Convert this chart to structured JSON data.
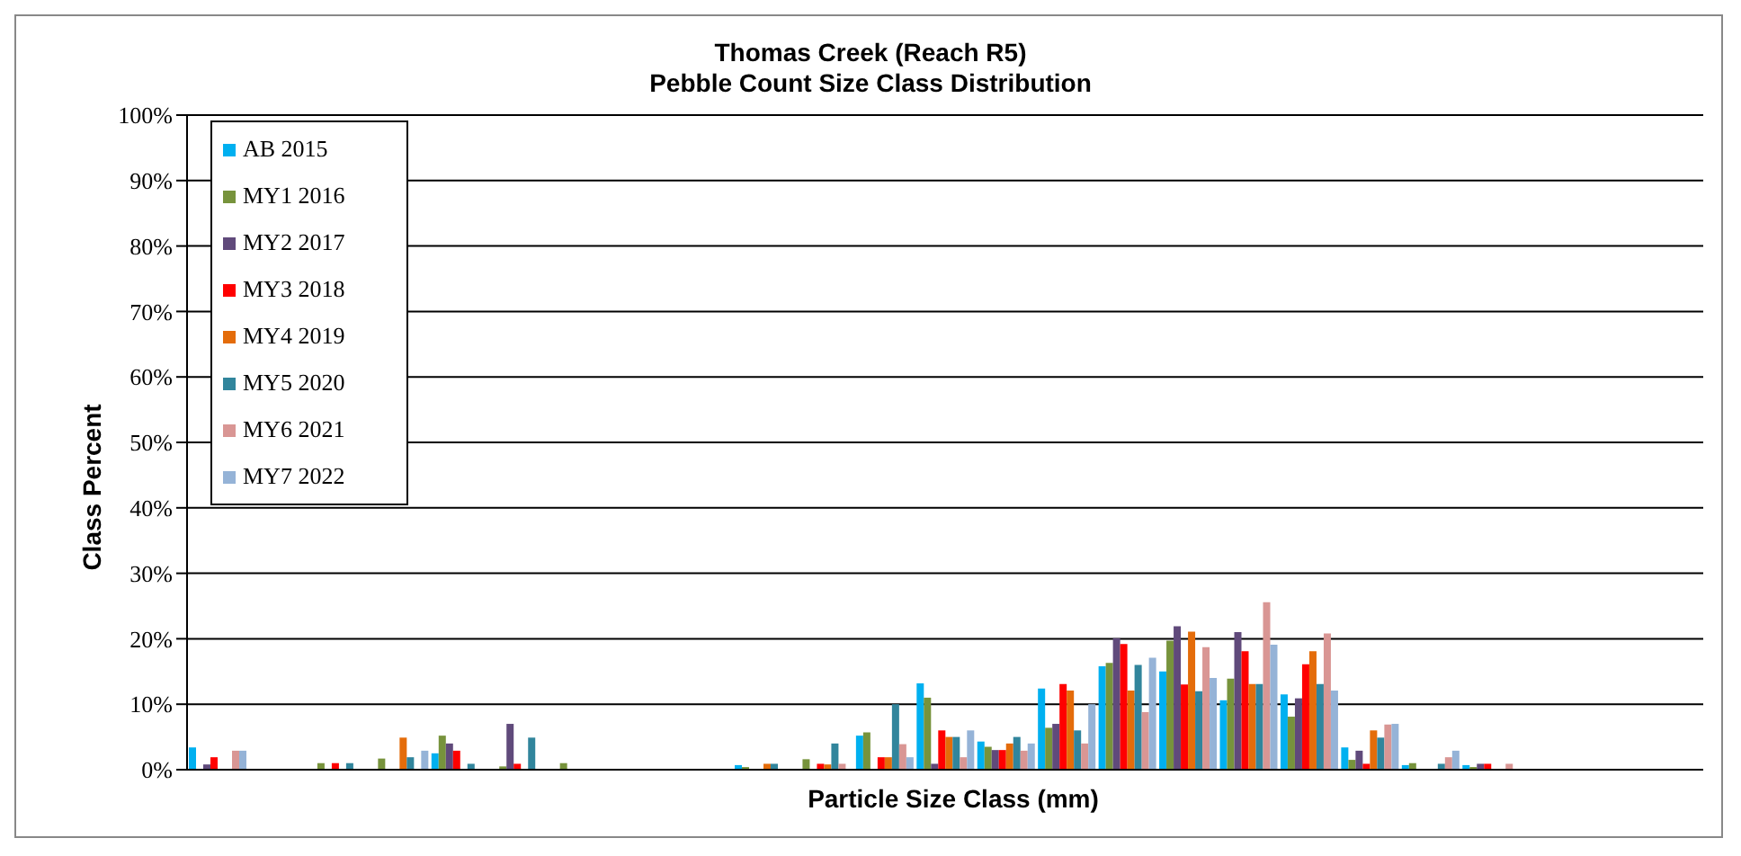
{
  "chart_data": {
    "type": "bar",
    "title": "Thomas Creek (Reach R5)",
    "subtitle": "Pebble Count Size Class Distribution",
    "xlabel": "Particle Size Class (mm)",
    "ylabel": "Class Percent",
    "categories": [
      null,
      null,
      null,
      null,
      null,
      null,
      null,
      null,
      null,
      null,
      null,
      null,
      null,
      null,
      null,
      null,
      null,
      null,
      null,
      null,
      null,
      null,
      null,
      null,
      null
    ],
    "series": [
      {
        "name": "AB 2015",
        "color": "#00b0f0",
        "values": [
          3.4,
          0,
          0,
          0,
          2.5,
          0,
          0,
          0,
          0,
          0.7,
          0,
          5.2,
          13.2,
          4.3,
          12.4,
          15.8,
          15,
          10.6,
          11.5,
          3.4,
          0.7,
          0.7,
          0,
          0,
          0
        ]
      },
      {
        "name": "MY1 2016",
        "color": "#77933c",
        "values": [
          0,
          0,
          1,
          1.7,
          5.2,
          0.5,
          1,
          0,
          0,
          0.4,
          1.6,
          5.7,
          11,
          3.5,
          6.4,
          16.3,
          19.7,
          13.9,
          8.1,
          1.5,
          1,
          0.4,
          0,
          0,
          0
        ]
      },
      {
        "name": "MY2 2017",
        "color": "#604a7b",
        "values": [
          0.8,
          0,
          0,
          0,
          4,
          7,
          0,
          0,
          0,
          0,
          0,
          0,
          0.9,
          3,
          7,
          20.1,
          21.9,
          21,
          10.9,
          2.9,
          0,
          0.9,
          0,
          0,
          0
        ]
      },
      {
        "name": "MY3 2018",
        "color": "#ff0000",
        "values": [
          1.9,
          0,
          1,
          0,
          2.9,
          0.9,
          0,
          0,
          0,
          0,
          0.9,
          1.9,
          6,
          3,
          13.1,
          19.2,
          13,
          18.1,
          16.1,
          0.9,
          0,
          0.9,
          0,
          0,
          0
        ]
      },
      {
        "name": "MY4 2019",
        "color": "#e46c0a",
        "values": [
          0,
          0,
          0,
          4.9,
          0,
          0,
          0,
          0,
          0,
          0.9,
          0.8,
          1.9,
          5,
          4,
          12.1,
          12.1,
          21.1,
          13.1,
          18.1,
          6,
          0,
          0,
          0,
          0,
          0
        ]
      },
      {
        "name": "MY5 2020",
        "color": "#31859c",
        "values": [
          0,
          0,
          1,
          1.9,
          0.9,
          4.9,
          0,
          0,
          0,
          0.9,
          4,
          10,
          5,
          5,
          6,
          16,
          12,
          13.1,
          13.1,
          4.9,
          0.9,
          0,
          0,
          0,
          0
        ]
      },
      {
        "name": "MY6 2021",
        "color": "#d99694",
        "values": [
          2.9,
          0,
          0,
          0,
          0,
          0,
          0,
          0,
          0,
          0,
          0.9,
          3.9,
          1.9,
          2.9,
          4,
          8.8,
          18.7,
          25.6,
          20.8,
          6.9,
          1.9,
          0.9,
          0,
          0,
          0
        ]
      },
      {
        "name": "MY7 2022",
        "color": "#95b3d7",
        "values": [
          2.9,
          0,
          0,
          2.9,
          0,
          0,
          0,
          0,
          0,
          0,
          0,
          1.9,
          6,
          4,
          10,
          17.1,
          14,
          19.1,
          12.1,
          7,
          2.9,
          0,
          0,
          0,
          0
        ]
      }
    ],
    "ylim": [
      0,
      100
    ],
    "yticks": [
      {
        "value": 0,
        "label": "0%"
      },
      {
        "value": 10,
        "label": "10%"
      },
      {
        "value": 20,
        "label": "20%"
      },
      {
        "value": 30,
        "label": "30%"
      },
      {
        "value": 40,
        "label": "40%"
      },
      {
        "value": 50,
        "label": "50%"
      },
      {
        "value": 60,
        "label": "60%"
      },
      {
        "value": 70,
        "label": "70%"
      },
      {
        "value": 80,
        "label": "80%"
      },
      {
        "value": 90,
        "label": "90%"
      },
      {
        "value": 100,
        "label": "100%"
      }
    ],
    "grid": "y",
    "legend": "top left",
    "tick_labels": "y"
  }
}
